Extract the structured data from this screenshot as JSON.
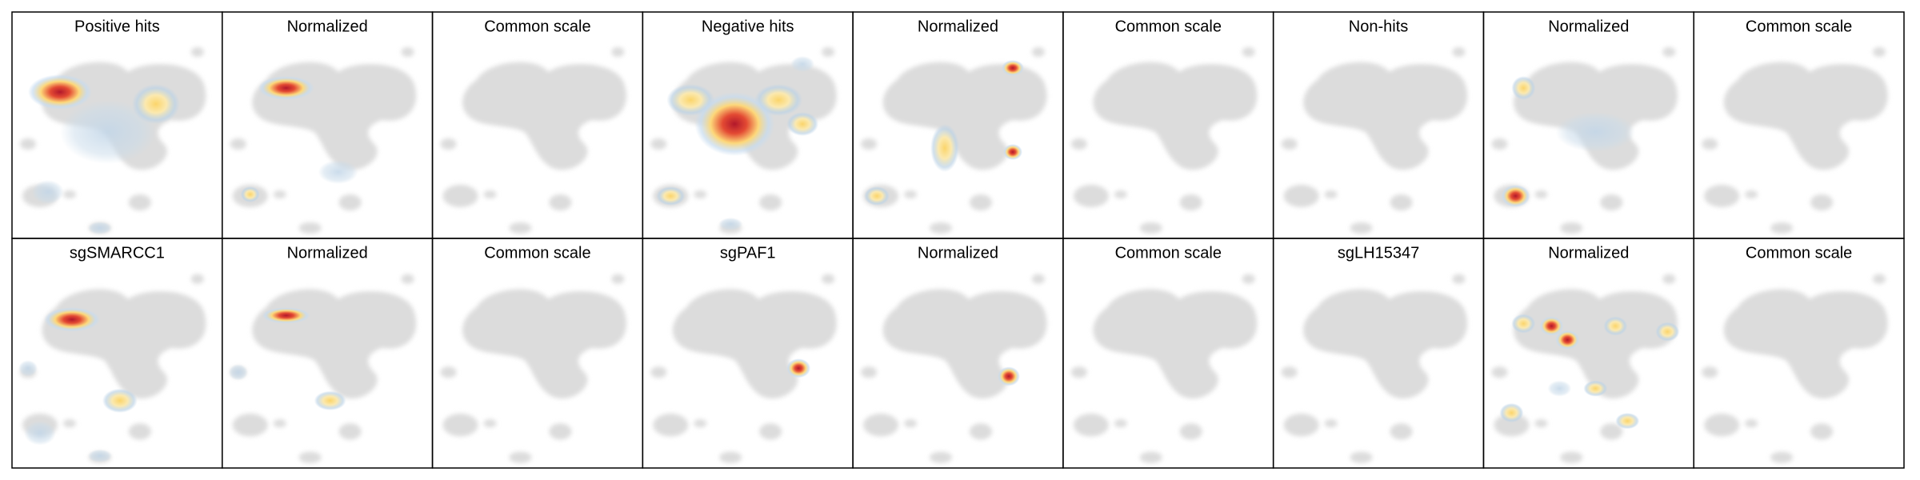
{
  "panels": [
    [
      "Positive hits",
      "Normalized",
      "Common scale",
      "Negative hits",
      "Normalized",
      "Common scale",
      "Non-hits",
      "Normalized",
      "Common scale"
    ],
    [
      "sgSMARCC1",
      "Normalized",
      "Common scale",
      "sgPAF1",
      "Normalized",
      "Common scale",
      "sgLH15347",
      "Normalized",
      "Common scale"
    ]
  ]
}
